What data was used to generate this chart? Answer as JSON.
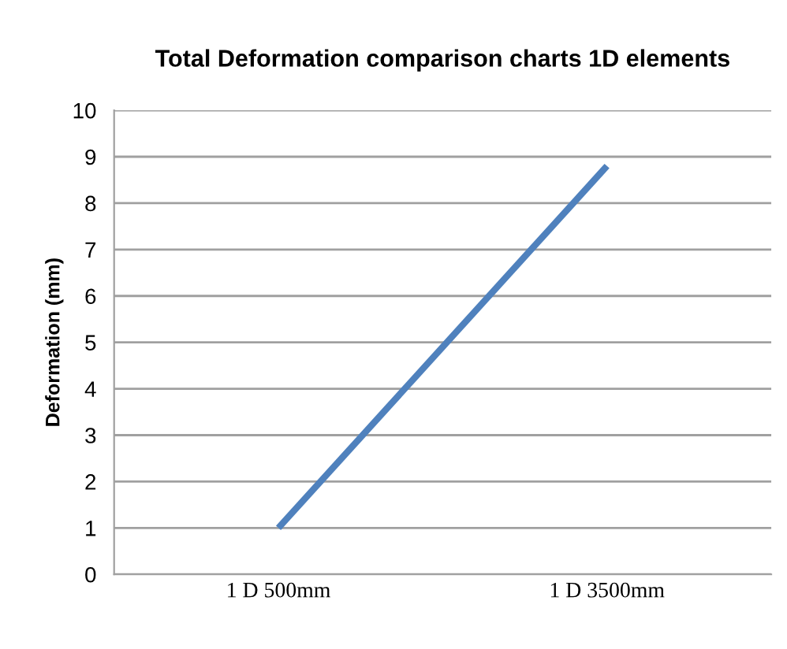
{
  "chart_data": {
    "type": "line",
    "title": "Total Deformation comparison charts 1D elements",
    "ylabel": "Deformation (mm)",
    "categories": [
      "1 D 500mm",
      "1 D 3500mm"
    ],
    "series": [
      {
        "color": "#4f81bd",
        "values": [
          1.0,
          8.8
        ]
      }
    ],
    "ylim": [
      0,
      10
    ],
    "yticks": [
      0,
      1,
      2,
      3,
      4,
      5,
      6,
      7,
      8,
      9,
      10
    ],
    "grid": "y",
    "legend": false,
    "marker": "none",
    "line_style": "solid"
  }
}
